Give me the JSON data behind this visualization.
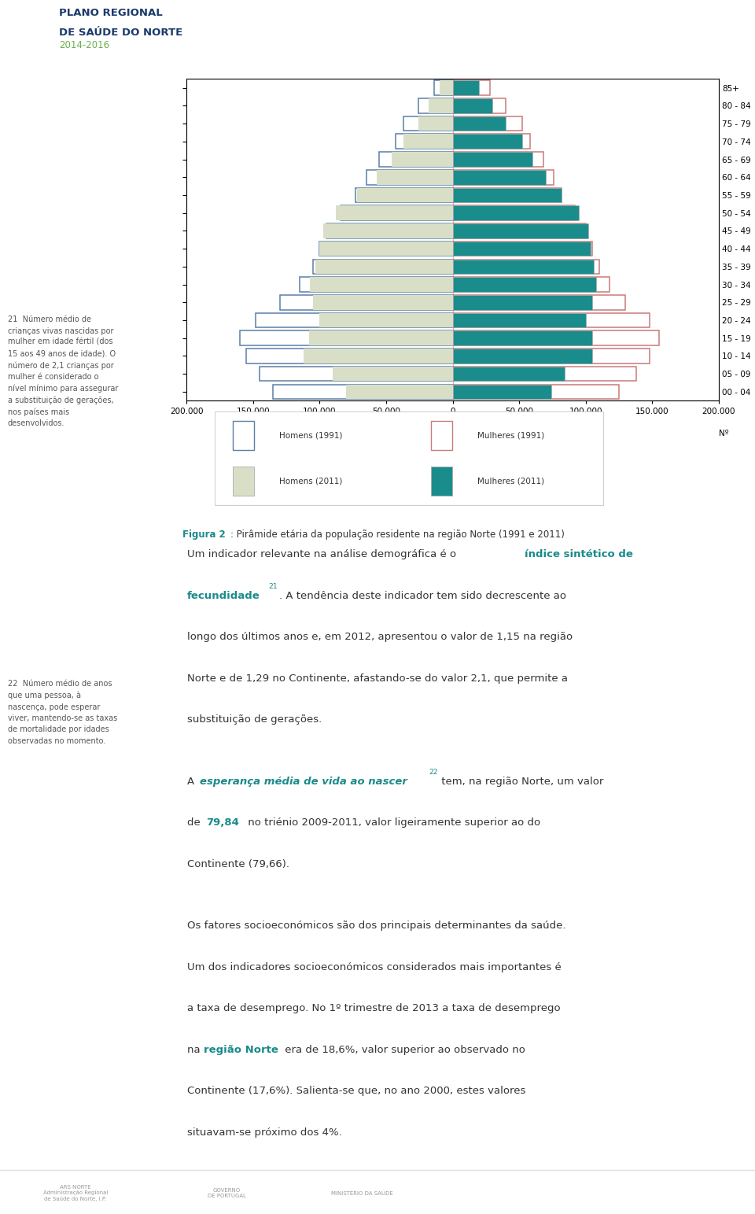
{
  "age_labels": [
    "00 - 04",
    "05 - 09",
    "10 - 14",
    "15 - 19",
    "20 - 24",
    "25 - 29",
    "30 - 34",
    "35 - 39",
    "40 - 44",
    "45 - 49",
    "50 - 54",
    "55 - 59",
    "60 - 64",
    "65 - 69",
    "70 - 74",
    "75 - 79",
    "80 - 84",
    "85+"
  ],
  "homens_1991": [
    135000,
    145000,
    155000,
    160000,
    148000,
    130000,
    115000,
    105000,
    100000,
    95000,
    84000,
    73000,
    65000,
    55000,
    43000,
    37000,
    26000,
    14000
  ],
  "mulheres_1991": [
    125000,
    138000,
    148000,
    155000,
    148000,
    130000,
    118000,
    110000,
    105000,
    100000,
    92000,
    82000,
    76000,
    68000,
    58000,
    52000,
    40000,
    28000
  ],
  "homens_2011": [
    80000,
    90000,
    112000,
    108000,
    100000,
    105000,
    107000,
    103000,
    100000,
    97000,
    88000,
    72000,
    57000,
    46000,
    37000,
    26000,
    18000,
    10000
  ],
  "mulheres_2011": [
    74000,
    84000,
    105000,
    105000,
    100000,
    105000,
    108000,
    106000,
    104000,
    102000,
    95000,
    82000,
    70000,
    60000,
    52000,
    40000,
    30000,
    20000
  ],
  "color_homens1991": "#5b7fa6",
  "color_mulheres1991": "#c97b7b",
  "color_homens2011": "#d9dfc7",
  "color_mulheres2011": "#1a8c8c",
  "xlim": 200000,
  "figure_bg": "#ffffff",
  "teal_color": "#1a8a8a",
  "dark_blue": "#1a3a6b",
  "green_header": "#6ab04c",
  "black": "#333333",
  "sidebar_gray": "#555555"
}
